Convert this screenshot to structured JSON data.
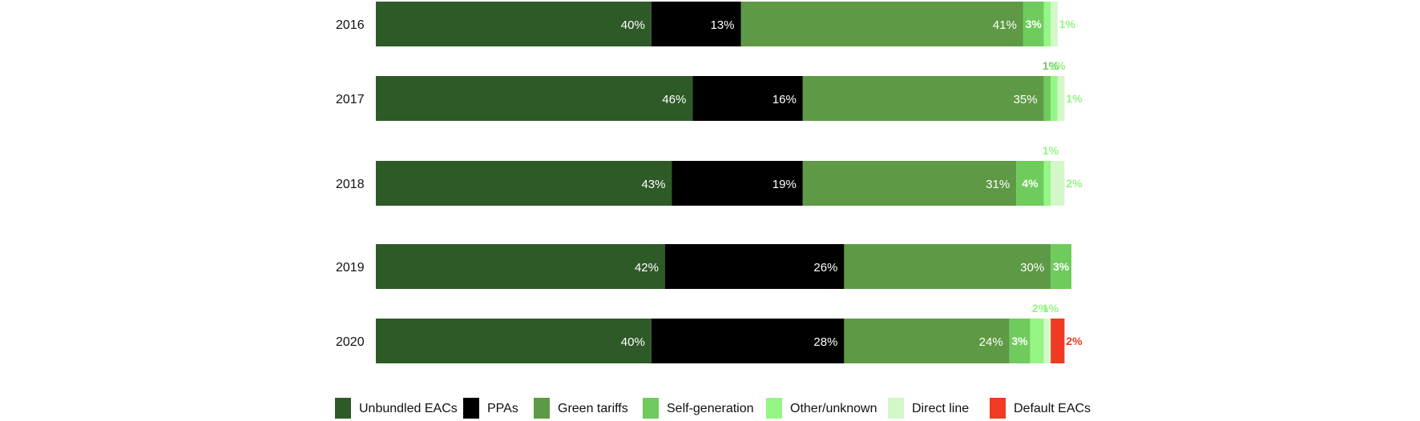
{
  "chart_data": {
    "type": "bar",
    "orientation": "horizontal",
    "stacked": true,
    "categories": [
      "2016",
      "2017",
      "2018",
      "2019",
      "2020"
    ],
    "series": [
      {
        "name": "Unbundled EACs",
        "color": "#2e5a27",
        "values": [
          40,
          46,
          43,
          42,
          40
        ],
        "labels": [
          "40%",
          "46%",
          "43%",
          "42%",
          "40%"
        ]
      },
      {
        "name": "PPAs",
        "color": "#000000",
        "values": [
          13,
          16,
          19,
          26,
          28
        ],
        "labels": [
          "13%",
          "16%",
          "19%",
          "26%",
          "28%"
        ]
      },
      {
        "name": "Green tariffs",
        "color": "#5e9a45",
        "values": [
          41,
          35,
          31,
          30,
          24
        ],
        "labels": [
          "41%",
          "35%",
          "31%",
          "30%",
          "24%"
        ]
      },
      {
        "name": "Self-generation",
        "color": "#6fcb5c",
        "values": [
          3,
          1,
          4,
          3,
          3
        ],
        "labels": [
          "3%",
          "1%",
          "4%",
          "3%",
          "3%"
        ]
      },
      {
        "name": "Other/unknown",
        "color": "#95f585",
        "values": [
          1,
          1,
          1,
          0,
          2
        ],
        "labels": [
          "",
          "1%",
          "1%",
          "",
          "2%"
        ]
      },
      {
        "name": "Direct line",
        "color": "#d4f7c9",
        "values": [
          1,
          1,
          2,
          0,
          1
        ],
        "labels": [
          "1%",
          "1%",
          "2%",
          "",
          "1%"
        ]
      },
      {
        "name": "Default EACs",
        "color": "#f03a23",
        "values": [
          0,
          0,
          0,
          0,
          2
        ],
        "labels": [
          "",
          "",
          "",
          "",
          "2%"
        ]
      }
    ],
    "xlim": [
      0,
      101
    ],
    "grid": false,
    "legend_position": "bottom"
  }
}
